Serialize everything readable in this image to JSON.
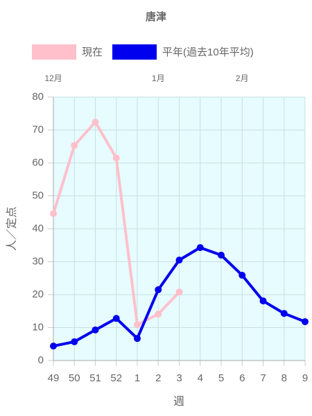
{
  "chart_data": {
    "type": "line",
    "title": "唐津",
    "categories": [
      "49",
      "50",
      "51",
      "52",
      "1",
      "2",
      "3",
      "4",
      "5",
      "6",
      "7",
      "8",
      "9"
    ],
    "top_labels": [
      "12月",
      null,
      null,
      null,
      null,
      "1月",
      null,
      null,
      null,
      "2月",
      null,
      null,
      null
    ],
    "series": [
      {
        "name": "現在",
        "color": "#ffc0cb",
        "values": [
          44.6,
          65.3,
          72.4,
          61.5,
          10.9,
          14.1,
          20.8,
          null,
          null,
          null,
          null,
          null,
          null
        ]
      },
      {
        "name": "平年(過去10年平均)",
        "color": "#0000ee",
        "values": [
          4.4,
          5.7,
          9.3,
          12.8,
          6.7,
          21.5,
          30.5,
          34.3,
          32.0,
          25.9,
          18.1,
          14.3,
          11.8
        ]
      }
    ],
    "ylabel": "人／定点",
    "xlabel": "週",
    "ylim": [
      0,
      80
    ],
    "yticks": [
      0,
      10,
      20,
      30,
      40,
      50,
      60,
      70,
      80
    ],
    "grid": true,
    "background": "#e6fcfe"
  }
}
